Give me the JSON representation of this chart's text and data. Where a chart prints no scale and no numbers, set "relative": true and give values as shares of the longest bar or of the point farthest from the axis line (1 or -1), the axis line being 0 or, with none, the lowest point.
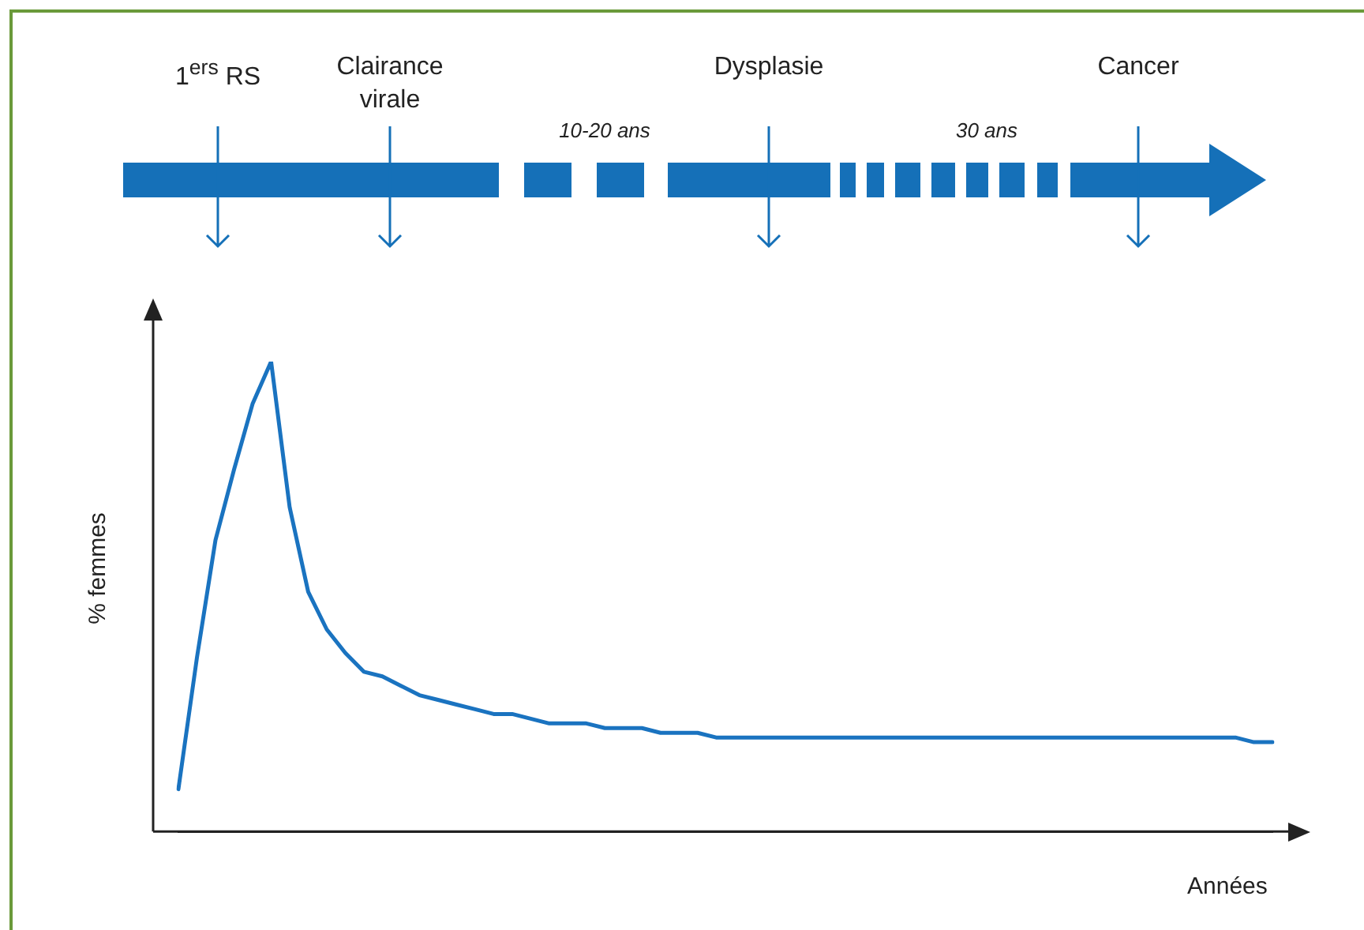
{
  "chart_data": {
    "type": "line",
    "relative": true,
    "xlabel": "Années",
    "ylabel": "% femmes",
    "annotations": [
      "1$^{ers}$ RS",
      "Clairance virale",
      "10-20 ans",
      "Dysplasie",
      "30 ans",
      "Cancer"
    ],
    "categories": [
      null,
      null,
      null,
      null,
      null,
      null,
      null,
      null,
      null,
      null,
      null,
      null,
      null,
      null,
      null,
      null,
      null,
      null,
      null,
      null,
      null,
      null,
      null,
      null,
      null,
      null,
      null,
      null,
      null,
      null,
      null,
      null,
      null,
      null,
      null,
      null,
      null,
      null,
      null,
      null,
      null,
      null,
      null,
      null,
      null,
      null,
      null,
      null,
      null,
      null,
      null,
      null,
      null,
      null,
      null,
      null,
      null,
      null,
      null,
      null
    ],
    "series": [
      {
        "color": "#1a73c0",
        "values": [
          0.09,
          0.37,
          0.62,
          0.77,
          0.91,
          1,
          0.69,
          0.51,
          0.43,
          0.38,
          0.34,
          0.33,
          0.31,
          0.29,
          0.28,
          0.27,
          0.26,
          0.25,
          0.25,
          0.24,
          0.23,
          0.23,
          0.23,
          0.22,
          0.22,
          0.22,
          0.21,
          0.21,
          0.21,
          0.2,
          0.2,
          0.2,
          0.2,
          0.2,
          0.2,
          0.2,
          0.2,
          0.2,
          0.2,
          0.2,
          0.2,
          0.2,
          0.2,
          0.2,
          0.2,
          0.2,
          0.2,
          0.2,
          0.2,
          0.2,
          0.2,
          0.2,
          0.2,
          0.2,
          0.2,
          0.2,
          0.2,
          0.2,
          0.19,
          0.19
        ]
      }
    ],
    "marker": "none",
    "line_style": "solid"
  }
}
